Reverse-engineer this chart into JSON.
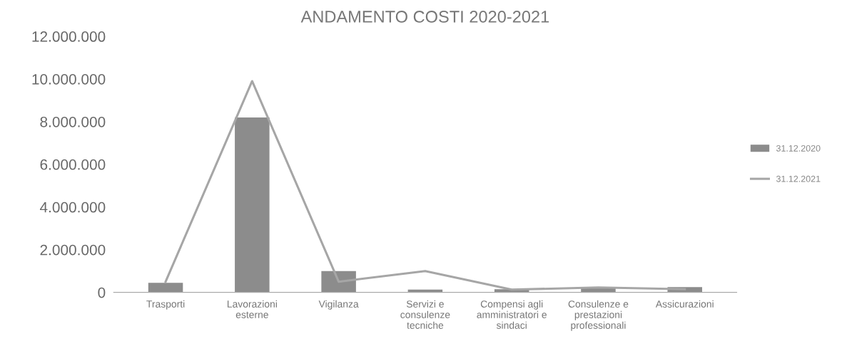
{
  "chart_data": {
    "type": "bar",
    "title": "ANDAMENTO COSTI 2020-2021",
    "categories": [
      "Trasporti",
      "Lavorazioni esterne",
      "Vigilanza",
      "Servizi e consulenze tecniche",
      "Compensi agli amministratori e sindaci",
      "Consulenze e prestazioni professionali",
      "Assicurazioni"
    ],
    "series": [
      {
        "name": "31.12.2020",
        "color": "#8c8c8c",
        "values": [
          450000,
          8200000,
          1000000,
          130000,
          150000,
          250000,
          250000
        ]
      },
      {
        "name": "31.12.2021",
        "type": "line",
        "color": "#a6a6a6",
        "values": [
          500000,
          9900000,
          500000,
          1000000,
          130000,
          230000,
          150000
        ]
      }
    ],
    "ylim": [
      0,
      12000000
    ],
    "yticks": [
      {
        "value": 0,
        "label": "0"
      },
      {
        "value": 2000000,
        "label": "2.000.000"
      },
      {
        "value": 4000000,
        "label": "4.000.000"
      },
      {
        "value": 6000000,
        "label": "6.000.000"
      },
      {
        "value": 8000000,
        "label": "8.000.000"
      },
      {
        "value": 10000000,
        "label": "10.000.000"
      },
      {
        "value": 12000000,
        "label": "12.000.000"
      }
    ],
    "grid": false,
    "legend": "right",
    "marker": "none",
    "line_style": "solid"
  }
}
